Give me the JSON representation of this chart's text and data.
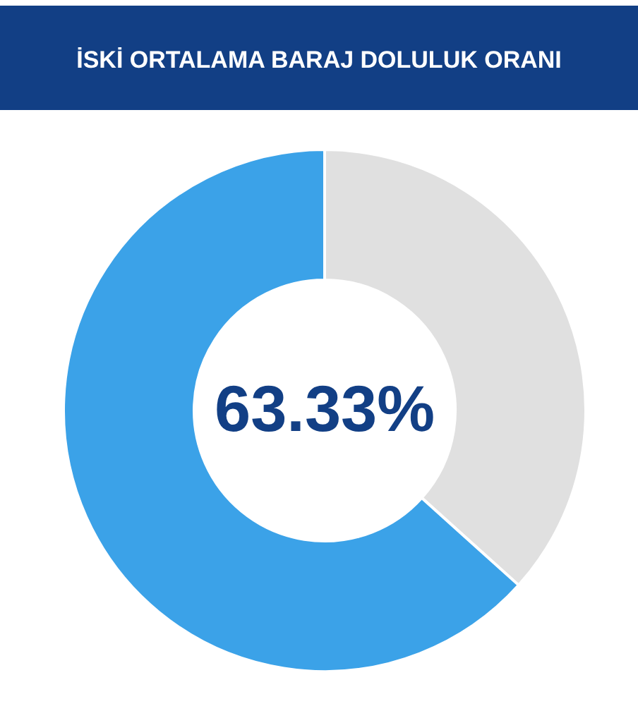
{
  "chart_data": {
    "type": "donut",
    "title": "İSKİ ORTALAMA BARAJ DOLULUK ORANI",
    "categories": [
      null,
      null
    ],
    "values": [
      36.67,
      63.33
    ],
    "colors": [
      "#e0e0e0",
      "#3ba2e8"
    ],
    "annotations": [
      "63.33%"
    ]
  }
}
